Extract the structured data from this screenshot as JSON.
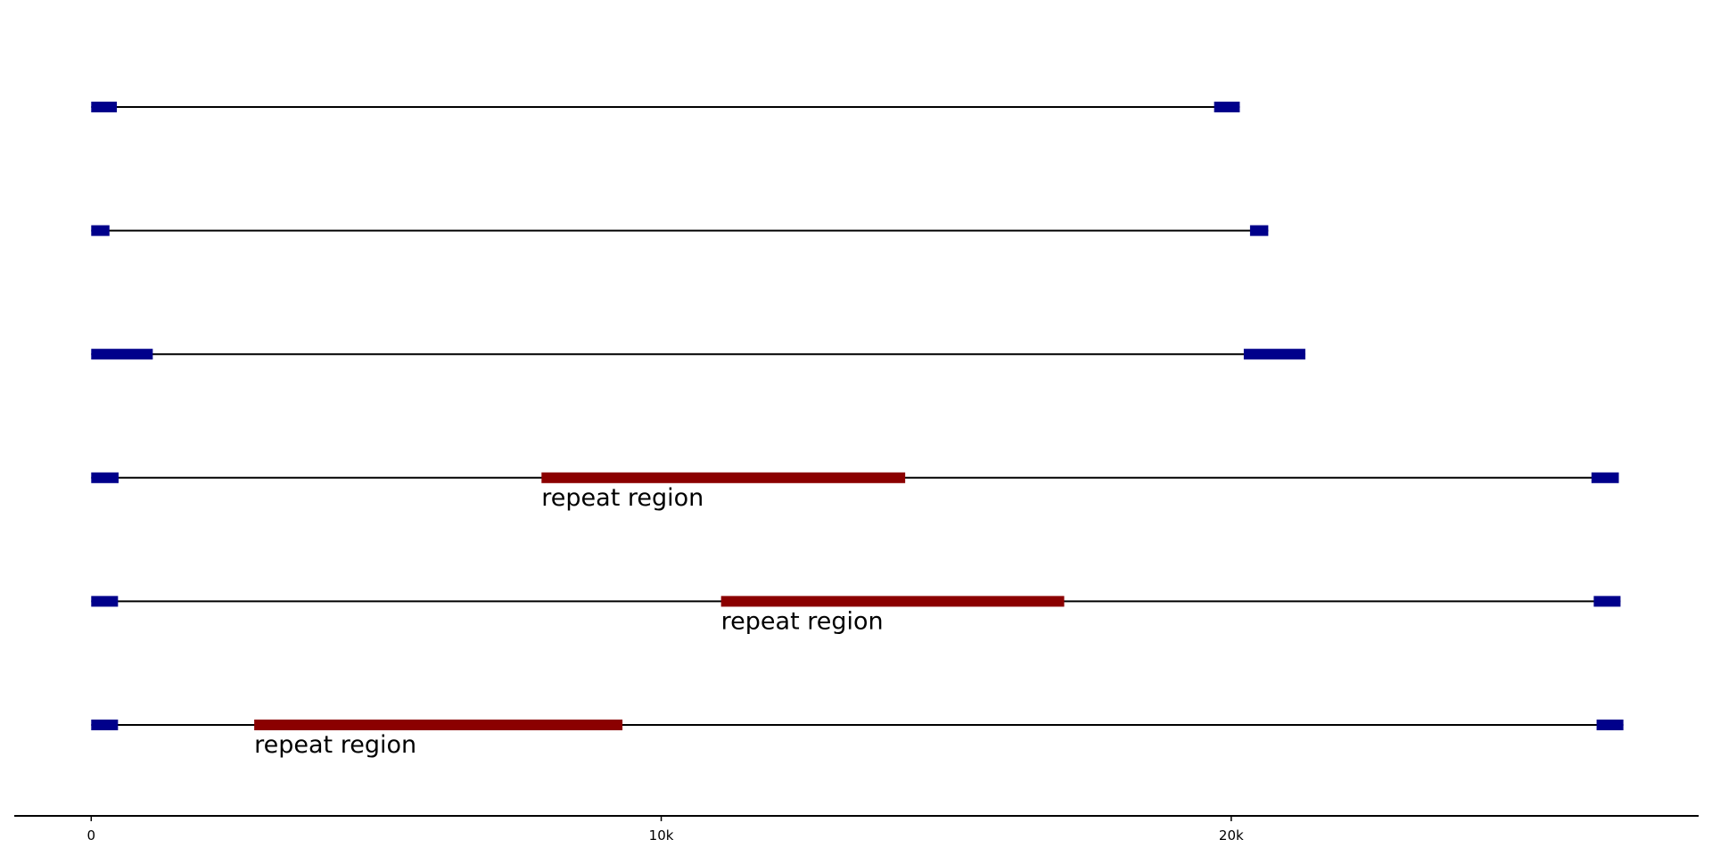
{
  "chart_data": {
    "type": "genome-track",
    "title": "",
    "xlabel": "",
    "ylabel": "",
    "xlim": [
      -1350,
      28200
    ],
    "x_ticks": [
      {
        "value": 0,
        "label": "0"
      },
      {
        "value": 10000,
        "label": "10k"
      },
      {
        "value": 20000,
        "label": "20k"
      }
    ],
    "grid": false,
    "colors": {
      "ltr": "#00008B",
      "repeat": "#8B0000",
      "backbone": "#000000"
    },
    "tracks": [
      {
        "start": 0,
        "end": 20150,
        "features": [
          {
            "kind": "ltr",
            "start": 0,
            "end": 450
          },
          {
            "kind": "ltr",
            "start": 19700,
            "end": 20150
          }
        ]
      },
      {
        "start": 0,
        "end": 20650,
        "features": [
          {
            "kind": "ltr",
            "start": 0,
            "end": 320
          },
          {
            "kind": "ltr",
            "start": 20330,
            "end": 20650
          }
        ]
      },
      {
        "start": 0,
        "end": 21300,
        "features": [
          {
            "kind": "ltr",
            "start": 0,
            "end": 1080
          },
          {
            "kind": "ltr",
            "start": 20220,
            "end": 21300
          }
        ]
      },
      {
        "start": 0,
        "end": 26800,
        "features": [
          {
            "kind": "ltr",
            "start": 0,
            "end": 480
          },
          {
            "kind": "repeat",
            "start": 7900,
            "end": 14280,
            "label": "repeat region"
          },
          {
            "kind": "ltr",
            "start": 26320,
            "end": 26800
          }
        ]
      },
      {
        "start": 0,
        "end": 26830,
        "features": [
          {
            "kind": "ltr",
            "start": 0,
            "end": 470
          },
          {
            "kind": "repeat",
            "start": 11050,
            "end": 17070,
            "label": "repeat region"
          },
          {
            "kind": "ltr",
            "start": 26360,
            "end": 26830
          }
        ]
      },
      {
        "start": 0,
        "end": 26880,
        "features": [
          {
            "kind": "ltr",
            "start": 0,
            "end": 470
          },
          {
            "kind": "repeat",
            "start": 2860,
            "end": 9320,
            "label": "repeat region"
          },
          {
            "kind": "ltr",
            "start": 26410,
            "end": 26880
          }
        ]
      }
    ]
  }
}
